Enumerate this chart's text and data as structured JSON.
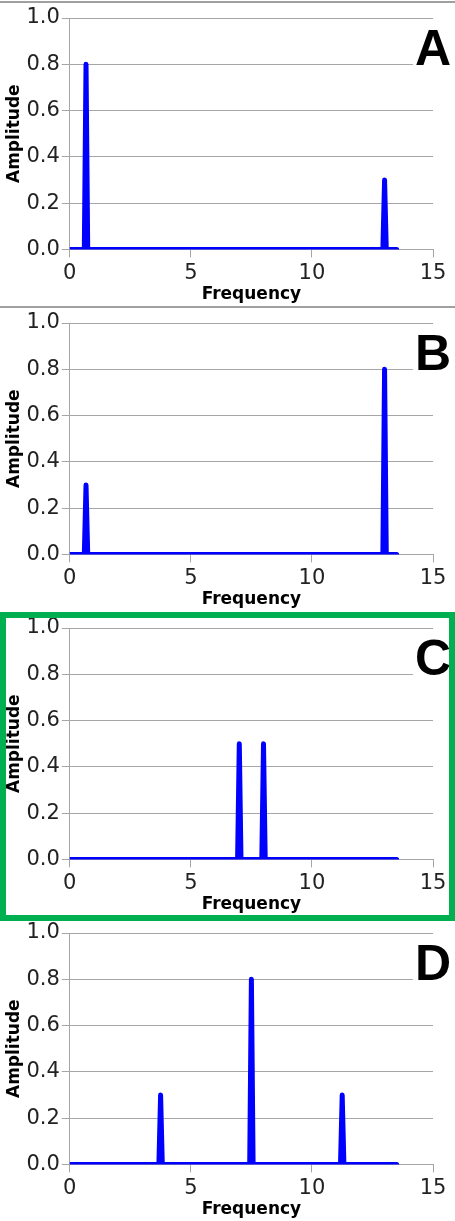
{
  "chart_data": [
    {
      "type": "line",
      "title": "A",
      "xlabel": "Frequency",
      "ylabel": "Amplitude",
      "grid": "y",
      "legend": false,
      "marker": "none",
      "line_style": "solid",
      "xlim": [
        0,
        15
      ],
      "xticks": [
        0,
        5,
        10,
        15
      ],
      "ylim": [
        0,
        1
      ],
      "yticks": [
        {
          "value": 0,
          "label": "0.0"
        },
        {
          "value": 0.2,
          "label": "0.2"
        },
        {
          "value": 0.4,
          "label": "0.4"
        },
        {
          "value": 0.6,
          "label": "0.6"
        },
        {
          "value": 0.8,
          "label": "0.8"
        },
        {
          "value": 1,
          "label": "1.0"
        }
      ],
      "series": [
        {
          "color": "#0000ff",
          "x": [
            0,
            0.6,
            0.67,
            0.74,
            12.93,
            13,
            13.07,
            13.5
          ],
          "values": [
            0,
            0,
            0.8,
            0,
            0,
            0.3,
            0,
            0
          ]
        }
      ]
    },
    {
      "type": "line",
      "title": "B",
      "xlabel": "Frequency",
      "ylabel": "Amplitude",
      "grid": "y",
      "legend": false,
      "marker": "none",
      "line_style": "solid",
      "xlim": [
        0,
        15
      ],
      "xticks": [
        0,
        5,
        10,
        15
      ],
      "ylim": [
        0,
        1
      ],
      "yticks": [
        {
          "value": 0,
          "label": "0.0"
        },
        {
          "value": 0.2,
          "label": "0.2"
        },
        {
          "value": 0.4,
          "label": "0.4"
        },
        {
          "value": 0.6,
          "label": "0.6"
        },
        {
          "value": 0.8,
          "label": "0.8"
        },
        {
          "value": 1,
          "label": "1.0"
        }
      ],
      "series": [
        {
          "color": "#0000ff",
          "x": [
            0,
            0.6,
            0.67,
            0.74,
            12.93,
            13,
            13.07,
            13.5
          ],
          "values": [
            0,
            0,
            0.3,
            0,
            0,
            0.8,
            0,
            0
          ]
        }
      ]
    },
    {
      "type": "line",
      "title": "C",
      "xlabel": "Frequency",
      "ylabel": "Amplitude",
      "grid": "y",
      "legend": false,
      "marker": "none",
      "line_style": "solid",
      "xlim": [
        0,
        15
      ],
      "xticks": [
        0,
        5,
        10,
        15
      ],
      "ylim": [
        0,
        1
      ],
      "yticks": [
        {
          "value": 0,
          "label": "0.0"
        },
        {
          "value": 0.2,
          "label": "0.2"
        },
        {
          "value": 0.4,
          "label": "0.4"
        },
        {
          "value": 0.6,
          "label": "0.6"
        },
        {
          "value": 0.8,
          "label": "0.8"
        },
        {
          "value": 1,
          "label": "1.0"
        }
      ],
      "series": [
        {
          "color": "#0000ff",
          "x": [
            0,
            6.93,
            7,
            7.07,
            7.93,
            8,
            8.07,
            13.5
          ],
          "values": [
            0,
            0,
            0.5,
            0,
            0,
            0.5,
            0,
            0
          ]
        }
      ]
    },
    {
      "type": "line",
      "title": "D",
      "xlabel": "Frequency",
      "ylabel": "Amplitude",
      "grid": "y",
      "legend": false,
      "marker": "none",
      "line_style": "solid",
      "xlim": [
        0,
        15
      ],
      "xticks": [
        0,
        5,
        10,
        15
      ],
      "ylim": [
        0,
        1
      ],
      "yticks": [
        {
          "value": 0,
          "label": "0.0"
        },
        {
          "value": 0.2,
          "label": "0.2"
        },
        {
          "value": 0.4,
          "label": "0.4"
        },
        {
          "value": 0.6,
          "label": "0.6"
        },
        {
          "value": 0.8,
          "label": "0.8"
        },
        {
          "value": 1,
          "label": "1.0"
        }
      ],
      "series": [
        {
          "color": "#0000ff",
          "x": [
            0,
            3.68,
            3.75,
            3.82,
            7.43,
            7.5,
            7.57,
            11.18,
            11.25,
            11.32,
            13.5
          ],
          "values": [
            0,
            0,
            0.3,
            0,
            0,
            0.8,
            0,
            0,
            0.3,
            0,
            0
          ]
        }
      ]
    }
  ]
}
